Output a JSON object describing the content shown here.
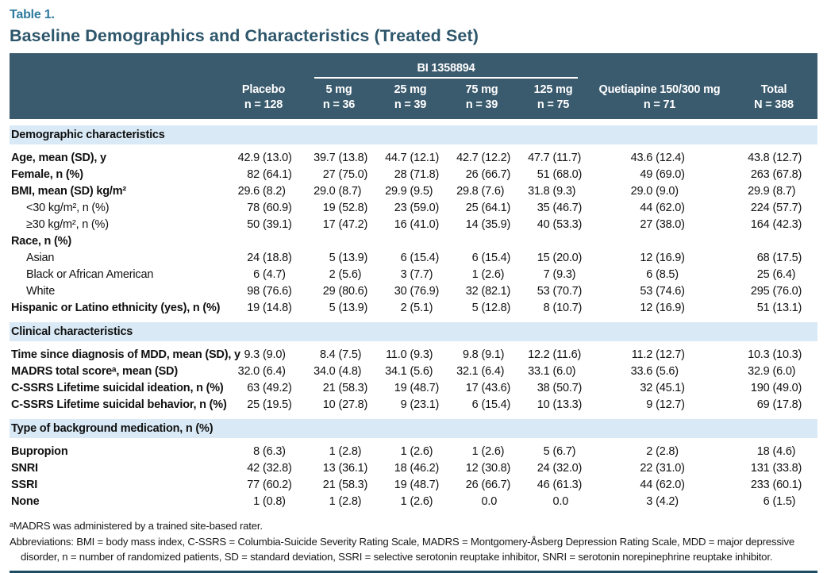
{
  "page": {
    "table_label": "Table 1.",
    "title": "Baseline Demographics and Characteristics (Treated Set)"
  },
  "colors": {
    "header_background": "#3a5a6e",
    "section_band_background": "#d9eaf6",
    "title_color": "#2d566b",
    "table_label_color": "#2e7a9e",
    "bottom_rule_color": "#1d4e63",
    "header_text": "#ffffff",
    "body_text": "#111111"
  },
  "table": {
    "group_header": "BI 1358894",
    "columns": [
      {
        "label": "Placebo",
        "n": "n = 128"
      },
      {
        "label": "5 mg",
        "n": "n = 36"
      },
      {
        "label": "25 mg",
        "n": "n = 39"
      },
      {
        "label": "75 mg",
        "n": "n = 39"
      },
      {
        "label": "125 mg",
        "n": "n = 75"
      },
      {
        "label": "Quetiapine 150/300 mg",
        "n": "n = 71"
      },
      {
        "label": "Total",
        "n": "N = 388"
      }
    ],
    "sections": [
      {
        "header": "Demographic characteristics",
        "rows": [
          {
            "label": "Age, mean (SD), y",
            "indent": false,
            "values": [
              "42.9 (13.0)",
              "39.7 (13.8)",
              "44.7 (12.1)",
              "42.7 (12.2)",
              "47.7 (11.7)",
              "43.6 (12.4)",
              "43.8 (12.7)"
            ]
          },
          {
            "label": "Female, n (%)",
            "indent": false,
            "values": [
              "82 (64.1)",
              "27 (75.0)",
              "28 (71.8)",
              "26 (66.7)",
              "51 (68.0)",
              "49 (69.0)",
              "263 (67.8)"
            ]
          },
          {
            "label": "BMI, mean (SD) kg/m²",
            "indent": false,
            "values": [
              "29.6 (8.2)",
              "29.0 (8.7)",
              "29.9 (9.5)",
              "29.8 (7.6)",
              "31.8 (9.3)",
              "29.0 (9.0)",
              "29.9 (8.7)"
            ]
          },
          {
            "label": "<30 kg/m², n (%)",
            "indent": true,
            "values": [
              "78 (60.9)",
              "19 (52.8)",
              "23 (59.0)",
              "25 (64.1)",
              "35 (46.7)",
              "44 (62.0)",
              "224 (57.7)"
            ]
          },
          {
            "label": "≥30 kg/m², n (%)",
            "indent": true,
            "values": [
              "50 (39.1)",
              "17 (47.2)",
              "16 (41.0)",
              "14 (35.9)",
              "40 (53.3)",
              "27 (38.0)",
              "164 (42.3)"
            ]
          },
          {
            "label": "Race, n (%)",
            "indent": false,
            "values": [
              "",
              "",
              "",
              "",
              "",
              "",
              ""
            ]
          },
          {
            "label": "Asian",
            "indent": true,
            "values": [
              "24 (18.8)",
              "5 (13.9)",
              "6 (15.4)",
              "6 (15.4)",
              "15 (20.0)",
              "12 (16.9)",
              "68 (17.5)"
            ]
          },
          {
            "label": "Black or African American",
            "indent": true,
            "values": [
              "6 (4.7)",
              "2 (5.6)",
              "3 (7.7)",
              "1 (2.6)",
              "7 (9.3)",
              "6 (8.5)",
              "25 (6.4)"
            ]
          },
          {
            "label": "White",
            "indent": true,
            "values": [
              "98 (76.6)",
              "29 (80.6)",
              "30 (76.9)",
              "32 (82.1)",
              "53 (70.7)",
              "53 (74.6)",
              "295 (76.0)"
            ]
          },
          {
            "label": "Hispanic or Latino ethnicity (yes), n (%)",
            "indent": false,
            "values": [
              "19 (14.8)",
              "5 (13.9)",
              "2 (5.1)",
              "5 (12.8)",
              "8 (10.7)",
              "12 (16.9)",
              "51 (13.1)"
            ]
          }
        ]
      },
      {
        "header": "Clinical characteristics",
        "rows": [
          {
            "label": "Time since diagnosis of MDD, mean (SD), y",
            "indent": false,
            "values": [
              "9.3 (9.0)",
              "8.4 (7.5)",
              "11.0 (9.3)",
              "9.8 (9.1)",
              "12.2 (11.6)",
              "11.2 (12.7)",
              "10.3 (10.3)"
            ]
          },
          {
            "label": "MADRS total scoreᵃ, mean (SD)",
            "indent": false,
            "values": [
              "32.0 (6.4)",
              "34.0 (4.8)",
              "34.1 (5.6)",
              "32.1 (6.4)",
              "33.1 (6.0)",
              "33.6 (5.6)",
              "32.9 (6.0)"
            ]
          },
          {
            "label": "C-SSRS Lifetime suicidal ideation, n (%)",
            "indent": false,
            "values": [
              "63 (49.2)",
              "21 (58.3)",
              "19 (48.7)",
              "17 (43.6)",
              "38 (50.7)",
              "32 (45.1)",
              "190 (49.0)"
            ]
          },
          {
            "label": "C-SSRS Lifetime suicidal behavior, n (%)",
            "indent": false,
            "values": [
              "25 (19.5)",
              "10 (27.8)",
              "9 (23.1)",
              "6 (15.4)",
              "10 (13.3)",
              "9 (12.7)",
              "69 (17.8)"
            ]
          }
        ]
      },
      {
        "header": "Type of background medication, n (%)",
        "rows": [
          {
            "label": "Bupropion",
            "indent": false,
            "values": [
              "8 (6.3)",
              "1 (2.8)",
              "1 (2.6)",
              "1 (2.6)",
              "5 (6.7)",
              "2 (2.8)",
              "18 (4.6)"
            ]
          },
          {
            "label": "SNRI",
            "indent": false,
            "values": [
              "42 (32.8)",
              "13 (36.1)",
              "18 (46.2)",
              "12 (30.8)",
              "24 (32.0)",
              "22 (31.0)",
              "131 (33.8)"
            ]
          },
          {
            "label": "SSRI",
            "indent": false,
            "values": [
              "77 (60.2)",
              "21 (58.3)",
              "19 (48.7)",
              "26 (66.7)",
              "46 (61.3)",
              "44 (62.0)",
              "233 (60.1)"
            ]
          },
          {
            "label": "None",
            "indent": false,
            "values": [
              "1 (0.8)",
              "1 (2.8)",
              "1 (2.6)",
              "0.0",
              "0.0",
              "3 (4.2)",
              "6 (1.5)"
            ]
          }
        ]
      }
    ]
  },
  "footnotes": {
    "note_a": "ᵃMADRS was administered by a trained site-based rater.",
    "abbreviations": "Abbreviations: BMI = body mass index, C-SSRS = Columbia-Suicide Severity Rating Scale, MADRS = Montgomery-Åsberg Depression Rating Scale, MDD = major depressive disorder, n = number of randomized patients, SD = standard deviation, SSRI = selective serotonin reuptake inhibitor, SNRI = serotonin norepinephrine reuptake inhibitor."
  }
}
